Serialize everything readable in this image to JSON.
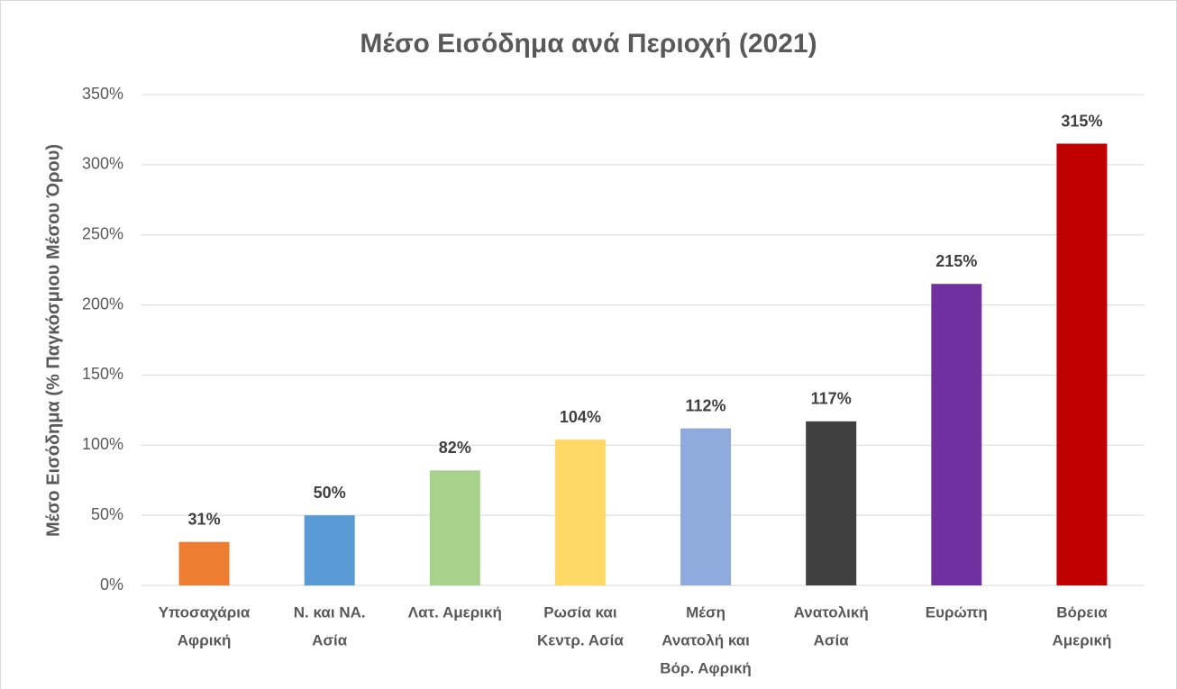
{
  "chart_data": {
    "type": "bar",
    "title": "Μέσο Εισόδημα ανά Περιοχή (2021)",
    "y_label": "Μέσο Εισόδημα (% Παγκόσμιου Μέσου Όρου)",
    "categories": [
      [
        "Υποσαχάρια",
        "Αφρική"
      ],
      [
        "Ν.  και ΝΑ.",
        "Ασία"
      ],
      [
        "Λατ. Αμερική"
      ],
      [
        "Ρωσία και",
        "Κεντρ. Ασία"
      ],
      [
        "Μέση",
        "Ανατολή και",
        "Βόρ. Αφρική"
      ],
      [
        "Ανατολική",
        "Ασία"
      ],
      [
        "Ευρώπη"
      ],
      [
        "Βόρεια",
        "Αμερική"
      ]
    ],
    "values": [
      31,
      50,
      82,
      104,
      112,
      117,
      215,
      315
    ],
    "value_labels": [
      "31%",
      "50%",
      "82%",
      "104%",
      "112%",
      "117%",
      "215%",
      "315%"
    ],
    "colors": [
      "#ed7d31",
      "#5b9bd5",
      "#a9d18e",
      "#ffd966",
      "#8faadc",
      "#404040",
      "#7030a0",
      "#c00000"
    ],
    "ylim": [
      0,
      350
    ],
    "yticks": [
      {
        "value": 0,
        "label": "0%"
      },
      {
        "value": 50,
        "label": "50%"
      },
      {
        "value": 100,
        "label": "100%"
      },
      {
        "value": 150,
        "label": "150%"
      },
      {
        "value": 200,
        "label": "200%"
      },
      {
        "value": 250,
        "label": "250%"
      },
      {
        "value": 300,
        "label": "300%"
      },
      {
        "value": 350,
        "label": "350%"
      }
    ],
    "grid": true
  }
}
